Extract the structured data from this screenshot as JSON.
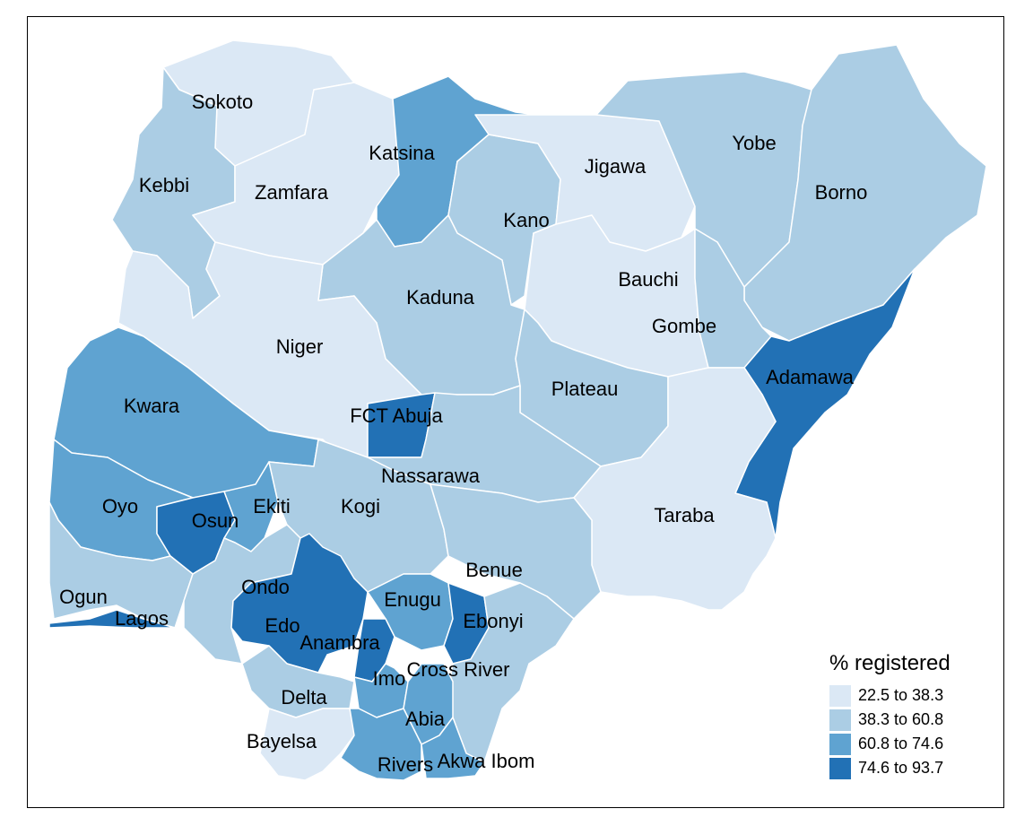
{
  "legend": {
    "title": "% registered",
    "bins": [
      {
        "label": "22.5 to 38.3",
        "color": "#dbe8f5"
      },
      {
        "label": "38.3 to 60.8",
        "color": "#abcde4"
      },
      {
        "label": "60.8 to 74.6",
        "color": "#5fa3d1"
      },
      {
        "label": "74.6 to 93.7",
        "color": "#2271b5"
      }
    ]
  },
  "states": [
    {
      "id": "sokoto",
      "name": "Sokoto",
      "bin": 0
    },
    {
      "id": "kebbi",
      "name": "Kebbi",
      "bin": 1
    },
    {
      "id": "zamfara",
      "name": "Zamfara",
      "bin": 0
    },
    {
      "id": "katsina",
      "name": "Katsina",
      "bin": 2
    },
    {
      "id": "kano",
      "name": "Kano",
      "bin": 1
    },
    {
      "id": "jigawa",
      "name": "Jigawa",
      "bin": 0
    },
    {
      "id": "yobe",
      "name": "Yobe",
      "bin": 1
    },
    {
      "id": "borno",
      "name": "Borno",
      "bin": 1
    },
    {
      "id": "kaduna",
      "name": "Kaduna",
      "bin": 1
    },
    {
      "id": "bauchi",
      "name": "Bauchi",
      "bin": 0
    },
    {
      "id": "gombe",
      "name": "Gombe",
      "bin": 1
    },
    {
      "id": "niger",
      "name": "Niger",
      "bin": 0
    },
    {
      "id": "adamawa",
      "name": "Adamawa",
      "bin": 3
    },
    {
      "id": "plateau",
      "name": "Plateau",
      "bin": 1
    },
    {
      "id": "kwara",
      "name": "Kwara",
      "bin": 2
    },
    {
      "id": "fct",
      "name": "FCT Abuja",
      "bin": 3
    },
    {
      "id": "nassarawa",
      "name": "Nassarawa",
      "bin": 1
    },
    {
      "id": "oyo",
      "name": "Oyo",
      "bin": 2
    },
    {
      "id": "osun",
      "name": "Osun",
      "bin": 3
    },
    {
      "id": "ekiti",
      "name": "Ekiti",
      "bin": 2
    },
    {
      "id": "kogi",
      "name": "Kogi",
      "bin": 1
    },
    {
      "id": "taraba",
      "name": "Taraba",
      "bin": 0
    },
    {
      "id": "benue",
      "name": "Benue",
      "bin": 1
    },
    {
      "id": "ogun",
      "name": "Ogun",
      "bin": 1
    },
    {
      "id": "ondo",
      "name": "Ondo",
      "bin": 1
    },
    {
      "id": "enugu",
      "name": "Enugu",
      "bin": 2
    },
    {
      "id": "lagos",
      "name": "Lagos",
      "bin": 3
    },
    {
      "id": "edo",
      "name": "Edo",
      "bin": 3
    },
    {
      "id": "ebonyi",
      "name": "Ebonyi",
      "bin": 3
    },
    {
      "id": "anambra",
      "name": "Anambra",
      "bin": 3
    },
    {
      "id": "crossriver",
      "name": "Cross River",
      "bin": 1
    },
    {
      "id": "imo",
      "name": "Imo",
      "bin": 2
    },
    {
      "id": "delta",
      "name": "Delta",
      "bin": 1
    },
    {
      "id": "abia",
      "name": "Abia",
      "bin": 2
    },
    {
      "id": "bayelsa",
      "name": "Bayelsa",
      "bin": 0
    },
    {
      "id": "rivers",
      "name": "Rivers",
      "bin": 2
    },
    {
      "id": "akwaibom",
      "name": "Akwa Ibom",
      "bin": 2
    }
  ]
}
